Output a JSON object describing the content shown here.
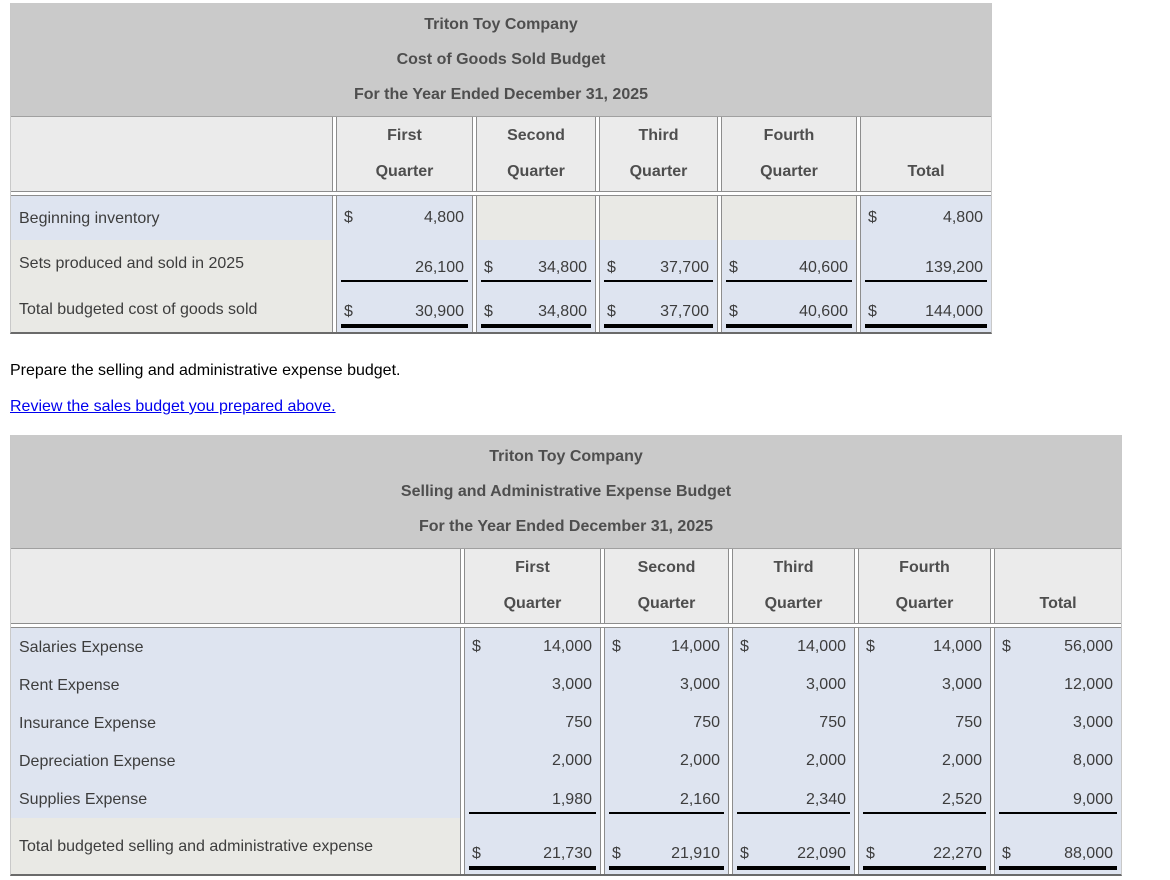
{
  "instruction": {
    "text": "Prepare the selling and administrative expense budget."
  },
  "review_link": {
    "text": "Review the sales budget you prepared above."
  },
  "colors": {
    "title_band": "#cacaca",
    "column_header_bg": "#ebebeb",
    "answer_cell_blue": "#dee4f0",
    "plain_cell_gray": "#e9e9e5",
    "grid_border": "#8d8d8d",
    "underline": "#000000",
    "link_blue": "#0000ee"
  },
  "cogs_budget": {
    "title_lines": [
      "Triton Toy Company",
      "Cost of Goods Sold Budget",
      "For the Year Ended December 31, 2025"
    ],
    "col_headers": [
      {
        "line1": "First",
        "line2": "Quarter"
      },
      {
        "line1": "Second",
        "line2": "Quarter"
      },
      {
        "line1": "Third",
        "line2": "Quarter"
      },
      {
        "line1": "Fourth",
        "line2": "Quarter"
      },
      {
        "line1": "",
        "line2": "Total"
      }
    ],
    "rows": [
      {
        "label": "Beginning inventory",
        "cells": [
          {
            "d": "$",
            "v": "4,800"
          },
          {
            "d": "",
            "v": ""
          },
          {
            "d": "",
            "v": ""
          },
          {
            "d": "",
            "v": ""
          },
          {
            "d": "$",
            "v": "4,800"
          }
        ]
      },
      {
        "label": "Sets produced and sold in 2025",
        "cells": [
          {
            "d": "",
            "v": "26,100"
          },
          {
            "d": "$",
            "v": "34,800"
          },
          {
            "d": "$",
            "v": "37,700"
          },
          {
            "d": "$",
            "v": "40,600"
          },
          {
            "d": "",
            "v": "139,200"
          }
        ]
      },
      {
        "label": "Total budgeted cost of goods sold",
        "cells": [
          {
            "d": "$",
            "v": "30,900"
          },
          {
            "d": "$",
            "v": "34,800"
          },
          {
            "d": "$",
            "v": "37,700"
          },
          {
            "d": "$",
            "v": "40,600"
          },
          {
            "d": "$",
            "v": "144,000"
          }
        ]
      }
    ]
  },
  "sga_budget": {
    "title_lines": [
      "Triton Toy Company",
      "Selling and Administrative Expense Budget",
      "For the Year Ended December 31, 2025"
    ],
    "col_headers": [
      {
        "line1": "First",
        "line2": "Quarter"
      },
      {
        "line1": "Second",
        "line2": "Quarter"
      },
      {
        "line1": "Third",
        "line2": "Quarter"
      },
      {
        "line1": "Fourth",
        "line2": "Quarter"
      },
      {
        "line1": "",
        "line2": "Total"
      }
    ],
    "rows": [
      {
        "label": "Salaries Expense",
        "cells": [
          {
            "d": "$",
            "v": "14,000"
          },
          {
            "d": "$",
            "v": "14,000"
          },
          {
            "d": "$",
            "v": "14,000"
          },
          {
            "d": "$",
            "v": "14,000"
          },
          {
            "d": "$",
            "v": "56,000"
          }
        ]
      },
      {
        "label": "Rent Expense",
        "cells": [
          {
            "d": "",
            "v": "3,000"
          },
          {
            "d": "",
            "v": "3,000"
          },
          {
            "d": "",
            "v": "3,000"
          },
          {
            "d": "",
            "v": "3,000"
          },
          {
            "d": "",
            "v": "12,000"
          }
        ]
      },
      {
        "label": "Insurance Expense",
        "cells": [
          {
            "d": "",
            "v": "750"
          },
          {
            "d": "",
            "v": "750"
          },
          {
            "d": "",
            "v": "750"
          },
          {
            "d": "",
            "v": "750"
          },
          {
            "d": "",
            "v": "3,000"
          }
        ]
      },
      {
        "label": "Depreciation Expense",
        "cells": [
          {
            "d": "",
            "v": "2,000"
          },
          {
            "d": "",
            "v": "2,000"
          },
          {
            "d": "",
            "v": "2,000"
          },
          {
            "d": "",
            "v": "2,000"
          },
          {
            "d": "",
            "v": "8,000"
          }
        ]
      },
      {
        "label": "Supplies Expense",
        "cells": [
          {
            "d": "",
            "v": "1,980"
          },
          {
            "d": "",
            "v": "2,160"
          },
          {
            "d": "",
            "v": "2,340"
          },
          {
            "d": "",
            "v": "2,520"
          },
          {
            "d": "",
            "v": "9,000"
          }
        ]
      },
      {
        "label": "Total budgeted selling and administrative expense",
        "cells": [
          {
            "d": "$",
            "v": "21,730"
          },
          {
            "d": "$",
            "v": "21,910"
          },
          {
            "d": "$",
            "v": "22,090"
          },
          {
            "d": "$",
            "v": "22,270"
          },
          {
            "d": "$",
            "v": "88,000"
          }
        ]
      }
    ]
  }
}
